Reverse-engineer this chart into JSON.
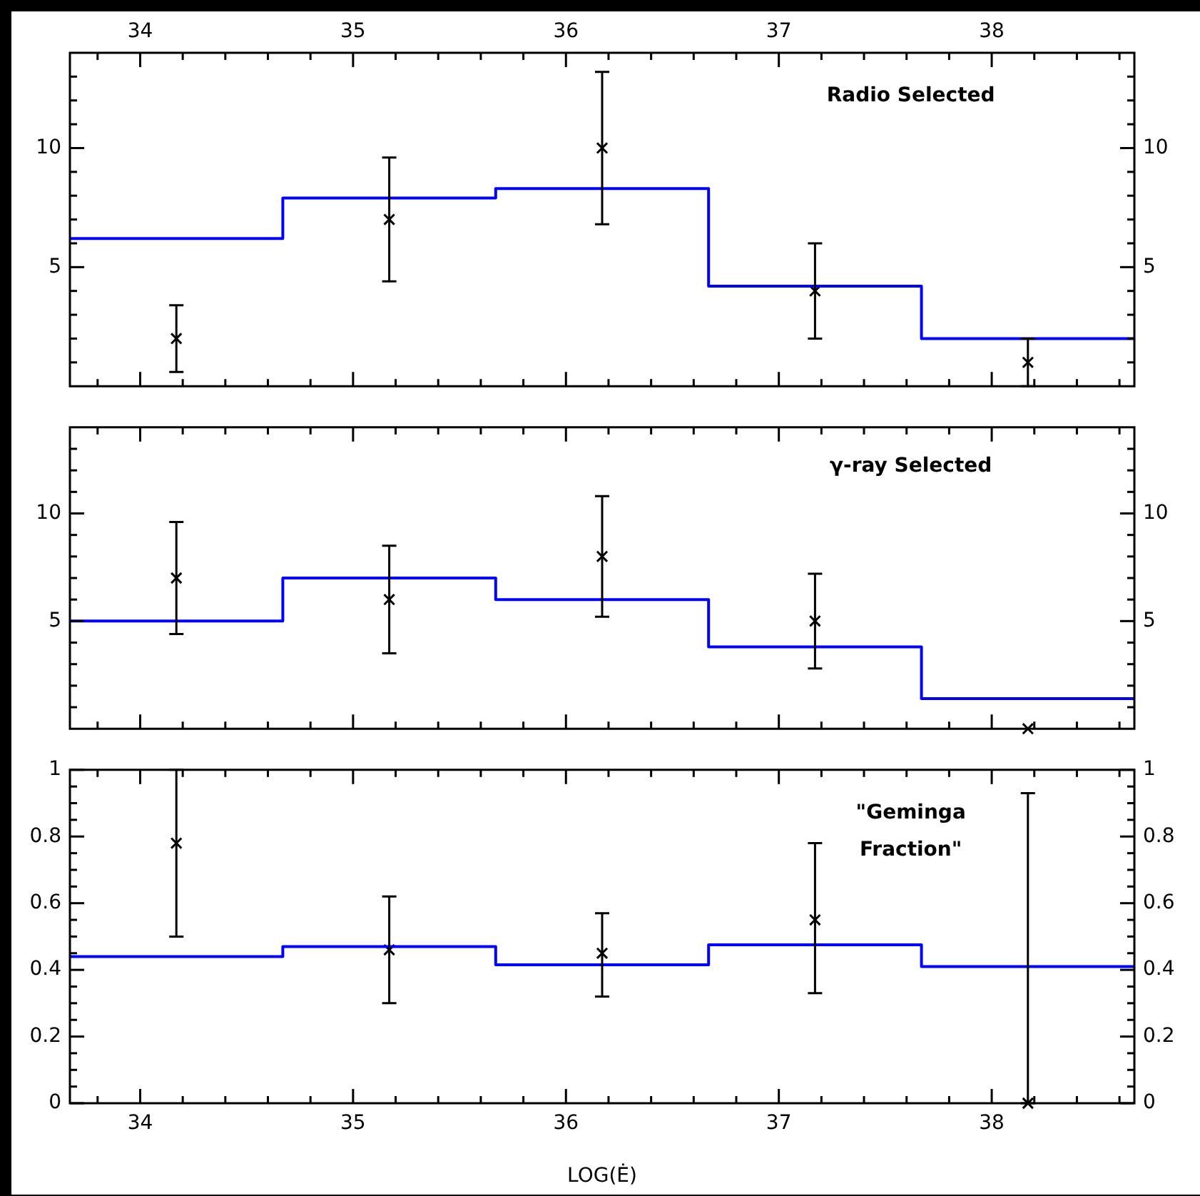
{
  "chart_data": [
    {
      "type": "scatter",
      "annotations": [
        "Radio Selected"
      ],
      "xlim": [
        33.67,
        38.67
      ],
      "x2lim": [
        33.67,
        38.67
      ],
      "xticks": [
        {
          "value": 33.8,
          "label": null
        },
        34,
        {
          "value": 34.2,
          "label": null
        },
        {
          "value": 34.4,
          "label": null
        },
        {
          "value": 34.6,
          "label": null
        },
        {
          "value": 34.8,
          "label": null
        },
        35,
        {
          "value": 35.2,
          "label": null
        },
        {
          "value": 35.4,
          "label": null
        },
        {
          "value": 35.6,
          "label": null
        },
        {
          "value": 35.8,
          "label": null
        },
        36,
        {
          "value": 36.2,
          "label": null
        },
        {
          "value": 36.4,
          "label": null
        },
        {
          "value": 36.6,
          "label": null
        },
        {
          "value": 36.8,
          "label": null
        },
        37,
        {
          "value": 37.2,
          "label": null
        },
        {
          "value": 37.4,
          "label": null
        },
        {
          "value": 37.6,
          "label": null
        },
        {
          "value": 37.8,
          "label": null
        },
        38,
        {
          "value": 38.2,
          "label": null
        },
        {
          "value": 38.4,
          "label": null
        },
        {
          "value": 38.6,
          "label": null
        }
      ],
      "x2ticks": [
        {
          "value": 33.8,
          "label": null
        },
        34,
        {
          "value": 34.2,
          "label": null
        },
        {
          "value": 34.4,
          "label": null
        },
        {
          "value": 34.6,
          "label": null
        },
        {
          "value": 34.8,
          "label": null
        },
        35,
        {
          "value": 35.2,
          "label": null
        },
        {
          "value": 35.4,
          "label": null
        },
        {
          "value": 35.6,
          "label": null
        },
        {
          "value": 35.8,
          "label": null
        },
        36,
        {
          "value": 36.2,
          "label": null
        },
        {
          "value": 36.4,
          "label": null
        },
        {
          "value": 36.6,
          "label": null
        },
        {
          "value": 36.8,
          "label": null
        },
        37,
        {
          "value": 37.2,
          "label": null
        },
        {
          "value": 37.4,
          "label": null
        },
        {
          "value": 37.6,
          "label": null
        },
        {
          "value": 37.8,
          "label": null
        },
        38,
        {
          "value": 38.2,
          "label": null
        },
        {
          "value": 38.4,
          "label": null
        },
        {
          "value": 38.6,
          "label": null
        }
      ],
      "ylim": [
        0,
        14
      ],
      "yticks": [
        {
          "value": 1,
          "label": null
        },
        {
          "value": 2,
          "label": null
        },
        {
          "value": 3,
          "label": null
        },
        {
          "value": 4,
          "label": null
        },
        5,
        {
          "value": 6,
          "label": null
        },
        {
          "value": 7,
          "label": null
        },
        {
          "value": 8,
          "label": null
        },
        {
          "value": 9,
          "label": null
        },
        10,
        {
          "value": 11,
          "label": null
        },
        {
          "value": 12,
          "label": null
        },
        {
          "value": 13,
          "label": null
        }
      ],
      "y2lim": [
        0,
        14
      ],
      "y2ticks": [
        {
          "value": 1,
          "label": null
        },
        {
          "value": 2,
          "label": null
        },
        {
          "value": 3,
          "label": null
        },
        {
          "value": 4,
          "label": null
        },
        5,
        {
          "value": 6,
          "label": null
        },
        {
          "value": 7,
          "label": null
        },
        {
          "value": 8,
          "label": null
        },
        {
          "value": 9,
          "label": null
        },
        10,
        {
          "value": 11,
          "label": null
        },
        {
          "value": 12,
          "label": null
        },
        {
          "value": 13,
          "label": null
        }
      ],
      "tick_labels": "y",
      "grid": false,
      "legend": false,
      "marker": "cross",
      "series": [
        {
          "type": "histogram",
          "color": "#0000ff",
          "bins": [
            33.67,
            34.67,
            35.67,
            36.67,
            37.67,
            38.67
          ],
          "values": [
            6.2,
            7.9,
            8.3,
            4.2,
            2.0
          ]
        },
        {
          "type": "scatter",
          "color": "#000000",
          "x": [
            34.17,
            35.17,
            36.17,
            37.17,
            38.17
          ],
          "values": [
            2,
            7,
            10,
            4,
            1
          ],
          "errors": [
            [
              0.6,
              3.4
            ],
            [
              4.4,
              9.6
            ],
            [
              6.8,
              13.2
            ],
            [
              2,
              6
            ],
            [
              0,
              2
            ]
          ]
        }
      ]
    },
    {
      "type": "scatter",
      "annotations": [
        "γ-ray Selected"
      ],
      "xlim": [
        33.67,
        38.67
      ],
      "xticks": [
        {
          "value": 33.8,
          "label": null
        },
        34,
        {
          "value": 34.2,
          "label": null
        },
        {
          "value": 34.4,
          "label": null
        },
        {
          "value": 34.6,
          "label": null
        },
        {
          "value": 34.8,
          "label": null
        },
        35,
        {
          "value": 35.2,
          "label": null
        },
        {
          "value": 35.4,
          "label": null
        },
        {
          "value": 35.6,
          "label": null
        },
        {
          "value": 35.8,
          "label": null
        },
        36,
        {
          "value": 36.2,
          "label": null
        },
        {
          "value": 36.4,
          "label": null
        },
        {
          "value": 36.6,
          "label": null
        },
        {
          "value": 36.8,
          "label": null
        },
        37,
        {
          "value": 37.2,
          "label": null
        },
        {
          "value": 37.4,
          "label": null
        },
        {
          "value": 37.6,
          "label": null
        },
        {
          "value": 37.8,
          "label": null
        },
        38,
        {
          "value": 38.2,
          "label": null
        },
        {
          "value": 38.4,
          "label": null
        },
        {
          "value": 38.6,
          "label": null
        }
      ],
      "ylim": [
        0,
        14
      ],
      "yticks": [
        {
          "value": 1,
          "label": null
        },
        {
          "value": 2,
          "label": null
        },
        {
          "value": 3,
          "label": null
        },
        {
          "value": 4,
          "label": null
        },
        5,
        {
          "value": 6,
          "label": null
        },
        {
          "value": 7,
          "label": null
        },
        {
          "value": 8,
          "label": null
        },
        {
          "value": 9,
          "label": null
        },
        10,
        {
          "value": 11,
          "label": null
        },
        {
          "value": 12,
          "label": null
        },
        {
          "value": 13,
          "label": null
        }
      ],
      "y2lim": [
        0,
        14
      ],
      "y2ticks": [
        {
          "value": 1,
          "label": null
        },
        {
          "value": 2,
          "label": null
        },
        {
          "value": 3,
          "label": null
        },
        {
          "value": 4,
          "label": null
        },
        5,
        {
          "value": 6,
          "label": null
        },
        {
          "value": 7,
          "label": null
        },
        {
          "value": 8,
          "label": null
        },
        {
          "value": 9,
          "label": null
        },
        10,
        {
          "value": 11,
          "label": null
        },
        {
          "value": 12,
          "label": null
        },
        {
          "value": 13,
          "label": null
        }
      ],
      "tick_labels": "y",
      "grid": false,
      "legend": false,
      "marker": "cross",
      "series": [
        {
          "type": "histogram",
          "color": "#0000ff",
          "bins": [
            33.67,
            34.67,
            35.67,
            36.67,
            37.67,
            38.67
          ],
          "values": [
            5.0,
            7.0,
            6.0,
            3.8,
            1.4
          ]
        },
        {
          "type": "scatter",
          "color": "#000000",
          "x": [
            34.17,
            35.17,
            36.17,
            37.17,
            38.17
          ],
          "values": [
            7,
            6,
            8,
            5,
            0
          ],
          "errors": [
            [
              4.4,
              9.6
            ],
            [
              3.5,
              8.5
            ],
            [
              5.2,
              10.8
            ],
            [
              2.8,
              7.2
            ],
            null
          ]
        }
      ]
    },
    {
      "type": "scatter",
      "xlabel": "LOG(Ė)",
      "annotations": [
        "\"Geminga Fraction\""
      ],
      "xlim": [
        33.67,
        38.67
      ],
      "xticks": [
        {
          "value": 33.8,
          "label": null
        },
        34,
        {
          "value": 34.2,
          "label": null
        },
        {
          "value": 34.4,
          "label": null
        },
        {
          "value": 34.6,
          "label": null
        },
        {
          "value": 34.8,
          "label": null
        },
        35,
        {
          "value": 35.2,
          "label": null
        },
        {
          "value": 35.4,
          "label": null
        },
        {
          "value": 35.6,
          "label": null
        },
        {
          "value": 35.8,
          "label": null
        },
        36,
        {
          "value": 36.2,
          "label": null
        },
        {
          "value": 36.4,
          "label": null
        },
        {
          "value": 36.6,
          "label": null
        },
        {
          "value": 36.8,
          "label": null
        },
        37,
        {
          "value": 37.2,
          "label": null
        },
        {
          "value": 37.4,
          "label": null
        },
        {
          "value": 37.6,
          "label": null
        },
        {
          "value": 37.8,
          "label": null
        },
        38,
        {
          "value": 38.2,
          "label": null
        },
        {
          "value": 38.4,
          "label": null
        },
        {
          "value": 38.6,
          "label": null
        }
      ],
      "ylim": [
        0,
        1
      ],
      "yticks": [
        0,
        {
          "value": 0.05,
          "label": null
        },
        {
          "value": 0.1,
          "label": null
        },
        {
          "value": 0.15,
          "label": null
        },
        0.2,
        {
          "value": 0.25,
          "label": null
        },
        {
          "value": 0.3,
          "label": null
        },
        {
          "value": 0.35,
          "label": null
        },
        0.4,
        {
          "value": 0.45,
          "label": null
        },
        {
          "value": 0.5,
          "label": null
        },
        {
          "value": 0.55,
          "label": null
        },
        0.6,
        {
          "value": 0.65,
          "label": null
        },
        {
          "value": 0.7,
          "label": null
        },
        {
          "value": 0.75,
          "label": null
        },
        0.8,
        {
          "value": 0.85,
          "label": null
        },
        {
          "value": 0.9,
          "label": null
        },
        {
          "value": 0.95,
          "label": null
        },
        1
      ],
      "y2lim": [
        0,
        1
      ],
      "y2ticks": [
        0,
        {
          "value": 0.05,
          "label": null
        },
        {
          "value": 0.1,
          "label": null
        },
        {
          "value": 0.15,
          "label": null
        },
        0.2,
        {
          "value": 0.25,
          "label": null
        },
        {
          "value": 0.3,
          "label": null
        },
        {
          "value": 0.35,
          "label": null
        },
        0.4,
        {
          "value": 0.45,
          "label": null
        },
        {
          "value": 0.5,
          "label": null
        },
        {
          "value": 0.55,
          "label": null
        },
        0.6,
        {
          "value": 0.65,
          "label": null
        },
        {
          "value": 0.7,
          "label": null
        },
        {
          "value": 0.75,
          "label": null
        },
        0.8,
        {
          "value": 0.85,
          "label": null
        },
        {
          "value": 0.9,
          "label": null
        },
        {
          "value": 0.95,
          "label": null
        },
        1
      ],
      "grid": false,
      "legend": false,
      "marker": "cross",
      "series": [
        {
          "type": "histogram",
          "color": "#0000ff",
          "bins": [
            33.67,
            34.67,
            35.67,
            36.67,
            37.67,
            38.67
          ],
          "values": [
            0.44,
            0.47,
            0.415,
            0.475,
            0.41
          ]
        },
        {
          "type": "scatter",
          "color": "#000000",
          "x": [
            34.17,
            35.17,
            36.17,
            37.17,
            38.17
          ],
          "values": [
            0.78,
            0.46,
            0.45,
            0.55,
            0
          ],
          "errors": [
            [
              0.5,
              1.0
            ],
            [
              0.3,
              0.62
            ],
            [
              0.32,
              0.57
            ],
            [
              0.33,
              0.78
            ],
            [
              0,
              0.93
            ]
          ]
        }
      ]
    }
  ]
}
